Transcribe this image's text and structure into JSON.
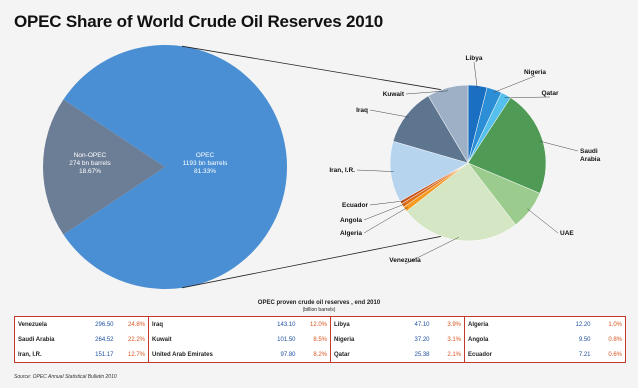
{
  "chart_data": [
    {
      "type": "pie",
      "title": "OPEC Share of World Crude Oil Reserves 2010",
      "slices": [
        {
          "name": "OPEC",
          "line1": "1193 bn barrels",
          "line2": "81.33%",
          "value": 81.33,
          "color": "#4a8fd4"
        },
        {
          "name": "Non-OPEC",
          "line1": "274 bn barrels",
          "line2": "18.67%",
          "value": 18.67,
          "color": "#6c7d96"
        }
      ]
    },
    {
      "type": "pie",
      "unit": "billion barrels",
      "slices": [
        {
          "name": "Libya",
          "value": 47.1,
          "color": "#1b6fc2"
        },
        {
          "name": "Nigeria",
          "value": 37.2,
          "color": "#2c8fd6"
        },
        {
          "name": "Qatar",
          "value": 25.38,
          "color": "#55c0ec"
        },
        {
          "name": "Saudi Arabia",
          "value": 264.52,
          "color": "#4f9a55"
        },
        {
          "name": "UAE",
          "value": 97.8,
          "color": "#9ccb8e"
        },
        {
          "name": "Venezuela",
          "value": 296.5,
          "color": "#d4e6c4"
        },
        {
          "name": "Algeria",
          "value": 12.2,
          "color": "#f59a1e"
        },
        {
          "name": "Angola",
          "value": 9.5,
          "color": "#e0701a"
        },
        {
          "name": "Ecuador",
          "value": 7.21,
          "color": "#c4521a"
        },
        {
          "name": "Iran, I.R.",
          "value": 151.17,
          "color": "#b7d4ee"
        },
        {
          "name": "Iraq",
          "value": 143.1,
          "color": "#5e7590"
        },
        {
          "name": "Kuwait",
          "value": 101.5,
          "color": "#9db0c6"
        }
      ]
    }
  ],
  "table": {
    "caption": "OPEC proven crude oil reserves , end 2010",
    "caption_unit": "(billion barrels)",
    "rows": [
      [
        [
          "Venezuela",
          "296.50",
          "24.8%"
        ],
        [
          "Iraq",
          "143.10",
          "12.0%"
        ],
        [
          "Libya",
          "47.10",
          "3.9%"
        ],
        [
          "Algeria",
          "12.20",
          "1.0%"
        ]
      ],
      [
        [
          "Saudi Arabia",
          "264.52",
          "22.2%"
        ],
        [
          "Kuwait",
          "101.50",
          "8.5%"
        ],
        [
          "Nigeria",
          "37.20",
          "3.1%"
        ],
        [
          "Angola",
          "9.50",
          "0.8%"
        ]
      ],
      [
        [
          "Iran, I.R.",
          "151.17",
          "12.7%"
        ],
        [
          "United Arab Emirates",
          "97.80",
          "8.2%"
        ],
        [
          "Qatar",
          "25.38",
          "2.1%"
        ],
        [
          "Ecuador",
          "7.21",
          "0.6%"
        ]
      ]
    ]
  },
  "source": "Source: OPEC Annual Statistical Bulletin 2010"
}
